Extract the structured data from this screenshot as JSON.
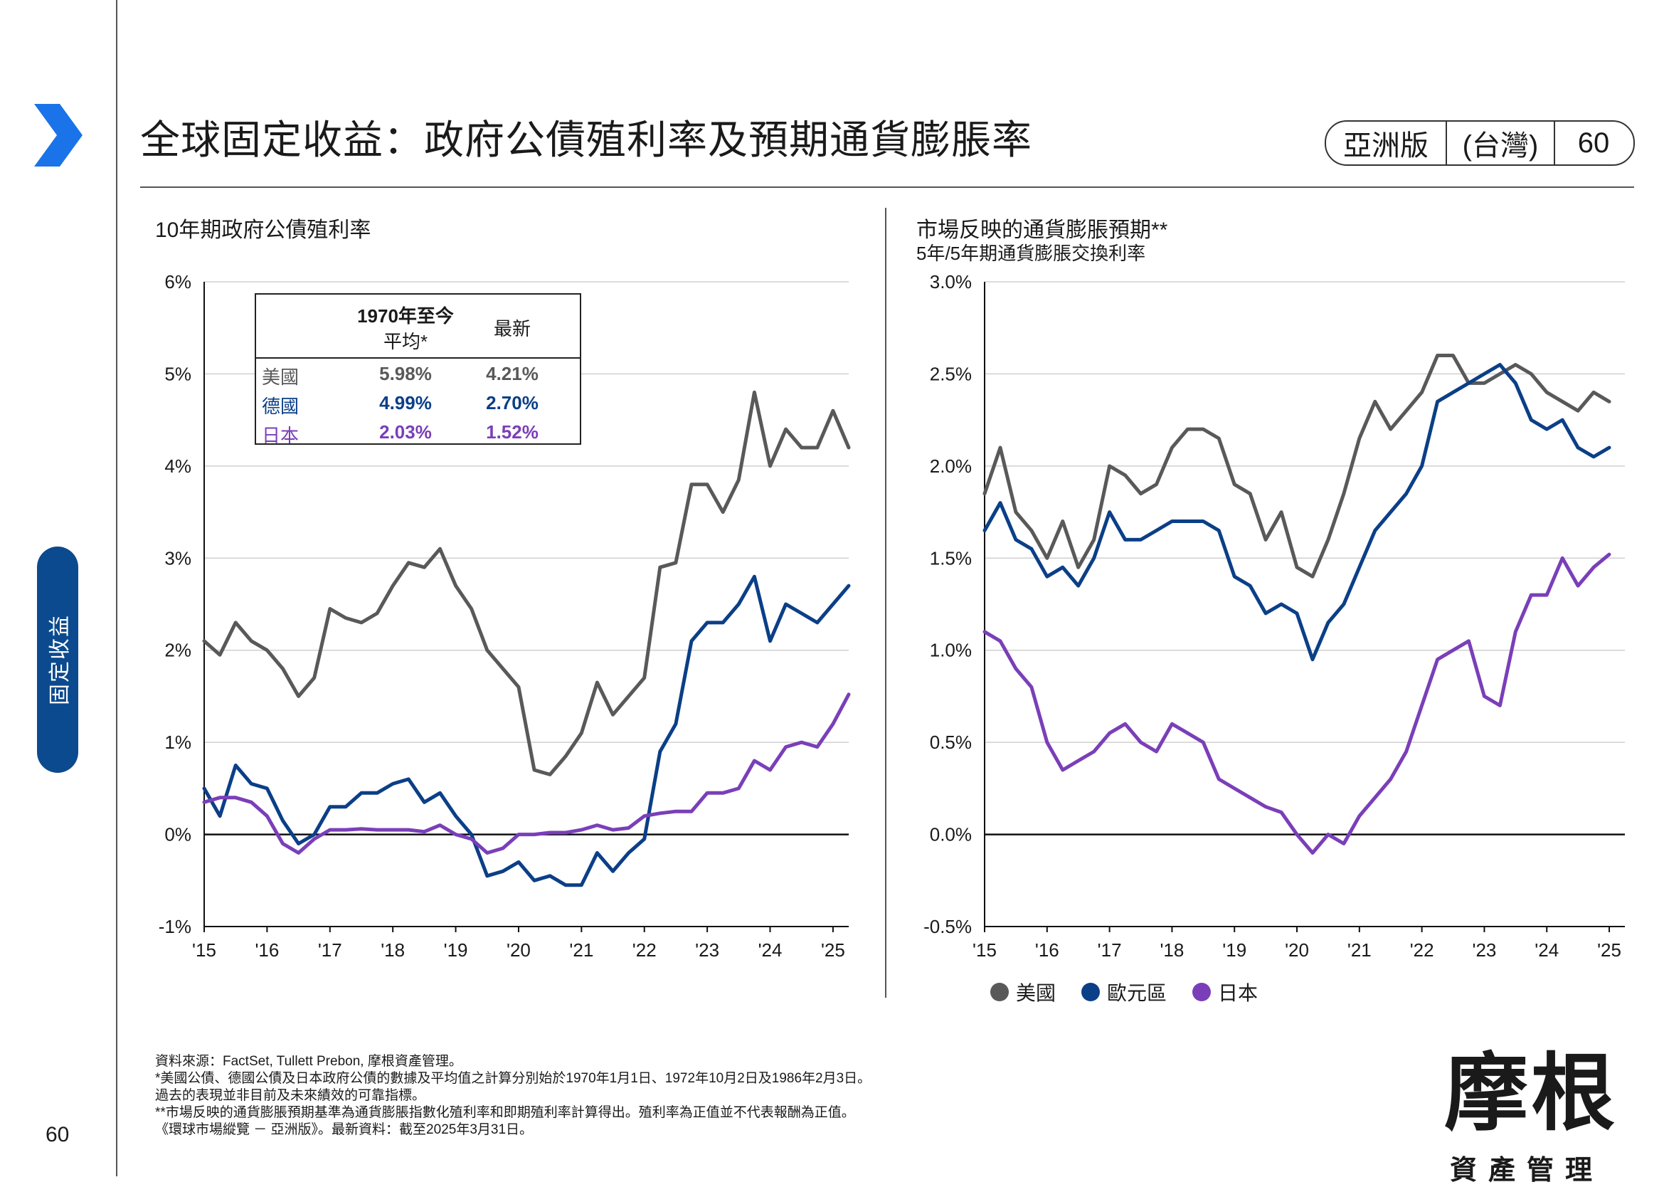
{
  "header": {
    "title": "全球固定收益：政府公債殖利率及預期通貨膨脹率",
    "badge_region": "亞洲版",
    "badge_country": "(台灣)",
    "badge_page": "60"
  },
  "sidebar": {
    "section_label": "固定收益",
    "page_number": "60"
  },
  "colors": {
    "us": "#595959",
    "germany": "#0b3f87",
    "japan": "#7a3fb8",
    "accent": "#1a73e8",
    "sidebar_tab": "#0b4a8e"
  },
  "icons": {
    "section_marker": "chevron-right-icon"
  },
  "stats_table": {
    "col_since_line1": "1970年至今",
    "col_since_line2": "平均*",
    "col_latest": "最新",
    "rows": [
      {
        "label": "美國",
        "avg": "5.98%",
        "latest": "4.21%"
      },
      {
        "label": "德國",
        "avg": "4.99%",
        "latest": "2.70%"
      },
      {
        "label": "日本",
        "avg": "2.03%",
        "latest": "1.52%"
      }
    ]
  },
  "chart_data": [
    {
      "type": "line",
      "title": "10年期政府公債殖利率",
      "ylim": [
        -1,
        6
      ],
      "yticks": [
        "-1%",
        "0%",
        "1%",
        "2%",
        "3%",
        "4%",
        "5%",
        "6%"
      ],
      "xticks": [
        "'15",
        "'16",
        "'17",
        "'18",
        "'19",
        "'20",
        "'21",
        "'22",
        "'23",
        "'24",
        "'25"
      ],
      "grid": true,
      "x": [
        2015.0,
        2015.25,
        2015.5,
        2015.75,
        2016.0,
        2016.25,
        2016.5,
        2016.75,
        2017.0,
        2017.25,
        2017.5,
        2017.75,
        2018.0,
        2018.25,
        2018.5,
        2018.75,
        2019.0,
        2019.25,
        2019.5,
        2019.75,
        2020.0,
        2020.25,
        2020.5,
        2020.75,
        2021.0,
        2021.25,
        2021.5,
        2021.75,
        2022.0,
        2022.25,
        2022.5,
        2022.75,
        2023.0,
        2023.25,
        2023.5,
        2023.75,
        2024.0,
        2024.25,
        2024.5,
        2024.75,
        2025.0,
        2025.25
      ],
      "series": [
        {
          "name": "美國",
          "values": [
            2.1,
            1.95,
            2.3,
            2.1,
            2.0,
            1.8,
            1.5,
            1.7,
            2.45,
            2.35,
            2.3,
            2.4,
            2.7,
            2.95,
            2.9,
            3.1,
            2.7,
            2.45,
            2.0,
            1.8,
            1.6,
            0.7,
            0.65,
            0.85,
            1.1,
            1.65,
            1.3,
            1.5,
            1.7,
            2.9,
            2.95,
            3.8,
            3.8,
            3.5,
            3.85,
            4.8,
            4.0,
            4.4,
            4.2,
            4.2,
            4.6,
            4.2
          ]
        },
        {
          "name": "德國",
          "values": [
            0.5,
            0.2,
            0.75,
            0.55,
            0.5,
            0.15,
            -0.1,
            0.0,
            0.3,
            0.3,
            0.45,
            0.45,
            0.55,
            0.6,
            0.35,
            0.45,
            0.2,
            0.0,
            -0.45,
            -0.4,
            -0.3,
            -0.5,
            -0.45,
            -0.55,
            -0.55,
            -0.2,
            -0.4,
            -0.2,
            -0.05,
            0.9,
            1.2,
            2.1,
            2.3,
            2.3,
            2.5,
            2.8,
            2.1,
            2.5,
            2.4,
            2.3,
            2.5,
            2.7
          ]
        },
        {
          "name": "日本",
          "values": [
            0.35,
            0.4,
            0.4,
            0.35,
            0.2,
            -0.1,
            -0.2,
            -0.05,
            0.05,
            0.05,
            0.06,
            0.05,
            0.05,
            0.05,
            0.03,
            0.1,
            0.0,
            -0.05,
            -0.2,
            -0.15,
            0.0,
            0.0,
            0.02,
            0.02,
            0.05,
            0.1,
            0.05,
            0.07,
            0.2,
            0.23,
            0.25,
            0.25,
            0.45,
            0.45,
            0.5,
            0.8,
            0.7,
            0.95,
            1.0,
            0.95,
            1.2,
            1.52
          ]
        }
      ]
    },
    {
      "type": "line",
      "title": "市場反映的通貨膨脹預期**",
      "subtitle": "5年/5年期通貨膨脹交換利率",
      "ylim": [
        -0.5,
        3.0
      ],
      "yticks": [
        "-0.5%",
        "0.0%",
        "0.5%",
        "1.0%",
        "1.5%",
        "2.0%",
        "2.5%",
        "3.0%"
      ],
      "xticks": [
        "'15",
        "'16",
        "'17",
        "'18",
        "'19",
        "'20",
        "'21",
        "'22",
        "'23",
        "'24",
        "'25"
      ],
      "grid": true,
      "legend_position": "bottom-left",
      "legend": [
        "美國",
        "歐元區",
        "日本"
      ],
      "x": [
        2015.0,
        2015.25,
        2015.5,
        2015.75,
        2016.0,
        2016.25,
        2016.5,
        2016.75,
        2017.0,
        2017.25,
        2017.5,
        2017.75,
        2018.0,
        2018.25,
        2018.5,
        2018.75,
        2019.0,
        2019.25,
        2019.5,
        2019.75,
        2020.0,
        2020.25,
        2020.5,
        2020.75,
        2021.0,
        2021.25,
        2021.5,
        2021.75,
        2022.0,
        2022.25,
        2022.5,
        2022.75,
        2023.0,
        2023.25,
        2023.5,
        2023.75,
        2024.0,
        2024.25,
        2024.5,
        2024.75,
        2025.0
      ],
      "series": [
        {
          "name": "美國",
          "values": [
            1.85,
            2.1,
            1.75,
            1.65,
            1.5,
            1.7,
            1.45,
            1.6,
            2.0,
            1.95,
            1.85,
            1.9,
            2.1,
            2.2,
            2.2,
            2.15,
            1.9,
            1.85,
            1.6,
            1.75,
            1.45,
            1.4,
            1.6,
            1.85,
            2.15,
            2.35,
            2.2,
            2.3,
            2.4,
            2.6,
            2.6,
            2.45,
            2.45,
            2.5,
            2.55,
            2.5,
            2.4,
            2.35,
            2.3,
            2.4,
            2.35
          ]
        },
        {
          "name": "歐元區",
          "values": [
            1.65,
            1.8,
            1.6,
            1.55,
            1.4,
            1.45,
            1.35,
            1.5,
            1.75,
            1.6,
            1.6,
            1.65,
            1.7,
            1.7,
            1.7,
            1.65,
            1.4,
            1.35,
            1.2,
            1.25,
            1.2,
            0.95,
            1.15,
            1.25,
            1.45,
            1.65,
            1.75,
            1.85,
            2.0,
            2.35,
            2.4,
            2.45,
            2.5,
            2.55,
            2.45,
            2.25,
            2.2,
            2.25,
            2.1,
            2.05,
            2.1
          ]
        },
        {
          "name": "日本",
          "values": [
            1.1,
            1.05,
            0.9,
            0.8,
            0.5,
            0.35,
            0.4,
            0.45,
            0.55,
            0.6,
            0.5,
            0.45,
            0.6,
            0.55,
            0.5,
            0.3,
            0.25,
            0.2,
            0.15,
            0.12,
            0.0,
            -0.1,
            0.0,
            -0.05,
            0.1,
            0.2,
            0.3,
            0.45,
            0.7,
            0.95,
            1.0,
            1.05,
            0.75,
            0.7,
            1.1,
            1.3,
            1.3,
            1.5,
            1.35,
            1.45,
            1.52
          ]
        }
      ]
    }
  ],
  "footnotes": [
    "資料來源：FactSet,  Tullett  Prebon,  摩根資產管理。",
    "*美國公債、德國公債及日本政府公債的數據及平均值之計算分別始於1970年1月1日、1972年10月2日及1986年2月3日。",
    "過去的表現並非目前及未來績效的可靠指標。",
    "**市場反映的通貨膨脹預期基準為通貨膨脹指數化殖利率和即期殖利率計算得出。殖利率為正值並不代表報酬為正值。",
    "《環球市場縱覽  －  亞洲版》。最新資料：截至2025年3月31日。"
  ],
  "logo": {
    "main": "摩根",
    "sub": "資產管理"
  }
}
